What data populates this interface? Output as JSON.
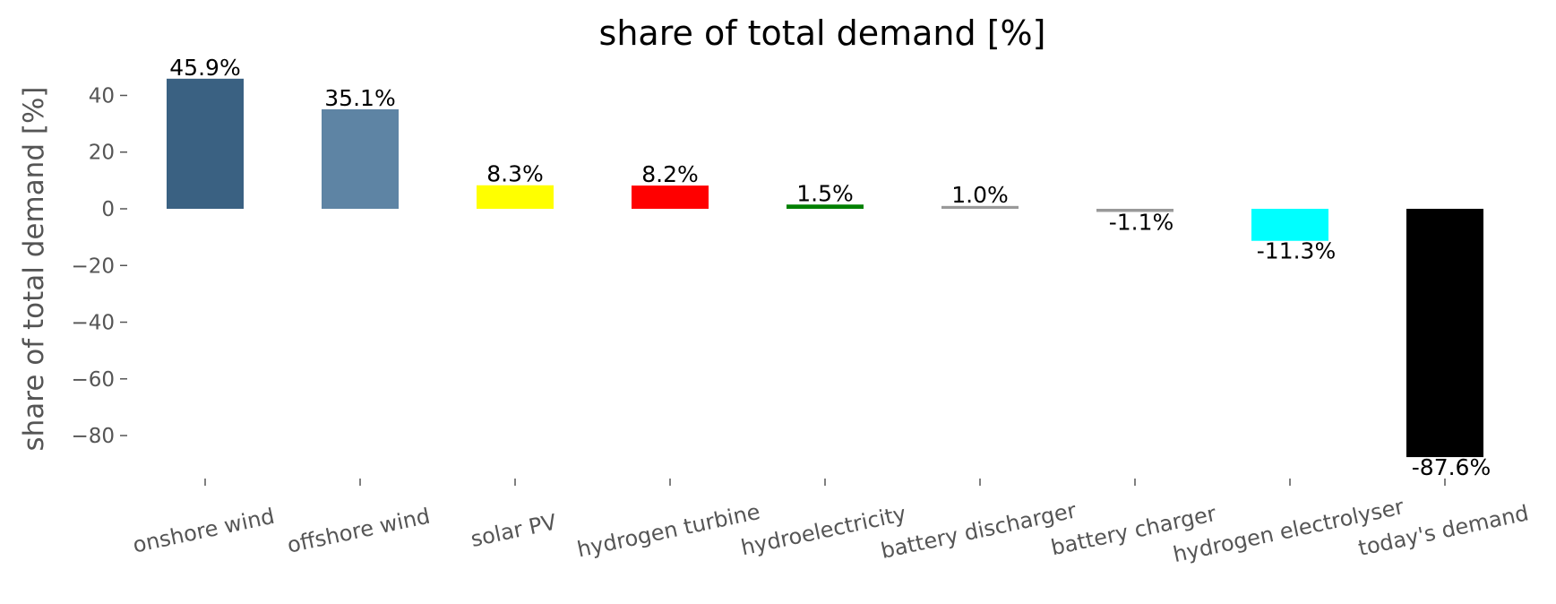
{
  "chart_data": {
    "type": "bar",
    "title": "share of total demand [%]",
    "xlabel": "",
    "ylabel": "share of total demand [%]",
    "ylim": [
      -95,
      50
    ],
    "yticks": [
      40,
      20,
      0,
      -20,
      -40,
      -60,
      -80
    ],
    "grid": false,
    "categories": [
      "onshore wind",
      "offshore wind",
      "solar PV",
      "hydrogen turbine",
      "hydroelectricity",
      "battery discharger",
      "battery charger",
      "hydrogen electrolyser",
      "today's demand"
    ],
    "values": [
      45.9,
      35.1,
      8.3,
      8.2,
      1.5,
      1.0,
      -1.1,
      -11.3,
      -87.6
    ],
    "labels": [
      "45.9%",
      "35.1%",
      "8.3%",
      "8.2%",
      "1.5%",
      "1.0%",
      "-1.1%",
      "-11.3%",
      "-87.6%"
    ],
    "colors": [
      "#3a6182",
      "#5e84a4",
      "#ffff00",
      "#ff0000",
      "#008000",
      "#999999",
      "#999999",
      "#00ffff",
      "#000000"
    ]
  }
}
